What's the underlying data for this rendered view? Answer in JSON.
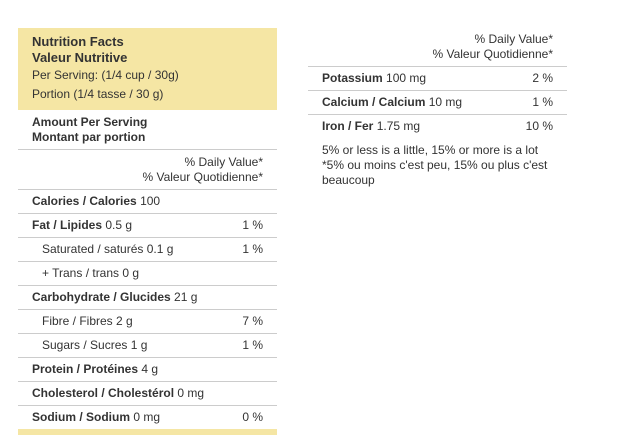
{
  "header": {
    "title": "Nutrition Facts",
    "title_fr": "Valeur Nutritive",
    "serving": "Per Serving: (1/4 cup / 30g)",
    "serving_fr": "Portion (1/4 tasse / 30 g)"
  },
  "amount": {
    "title": "Amount Per Serving",
    "title_fr": "Montant par portion"
  },
  "daily_value_heading": {
    "en": "% Daily Value*",
    "fr": "% Valeur Quotidienne*"
  },
  "rows": [
    {
      "nutrient": "Calories / Calories",
      "amount": "100"
    },
    {
      "nutrient": "Fat / Lipides",
      "amount": "0.5 g",
      "daily_value": "1 %"
    },
    {
      "label": "Saturated / saturés",
      "amount": "0.1 g",
      "daily_value": "1 %"
    },
    {
      "label": "+ Trans / trans",
      "amount": "0 g"
    },
    {
      "nutrient": "Carbohydrate / Glucides",
      "amount": "21 g"
    },
    {
      "label": "Fibre / Fibres",
      "amount": "2 g",
      "daily_value": "7 %"
    },
    {
      "label": "Sugars / Sucres",
      "amount": "1 g",
      "daily_value": "1 %"
    },
    {
      "nutrient": "Protein / Protéines",
      "amount": "4 g"
    },
    {
      "nutrient": "Cholesterol / Cholestérol",
      "amount": "0 mg"
    },
    {
      "nutrient": "Sodium / Sodium",
      "amount": "0 mg",
      "daily_value": "0 %"
    }
  ],
  "minerals": [
    {
      "nutrient": "Potassium",
      "amount": "100 mg",
      "daily_value": "2 %"
    },
    {
      "nutrient": "Calcium / Calcium",
      "amount": "10 mg",
      "daily_value": "1 %"
    },
    {
      "nutrient": "Iron / Fer",
      "amount": "1.75 mg",
      "daily_value": "10 %"
    }
  ],
  "footnote": {
    "en": "5% or less is a little, 15% or more is a lot",
    "fr": "*5% ou moins c'est peu, 15% ou plus c'est beaucoup"
  }
}
